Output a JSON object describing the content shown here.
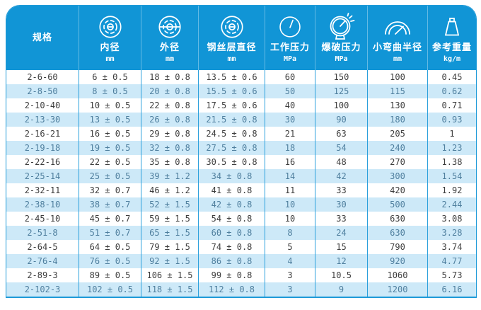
{
  "table": {
    "columns": [
      {
        "id": "spec",
        "label": "规格",
        "unit": "",
        "icon": ""
      },
      {
        "id": "inner-diameter",
        "label": "内径",
        "unit": "mm",
        "icon": "inner-diameter-icon"
      },
      {
        "id": "outer-diameter",
        "label": "外径",
        "unit": "mm",
        "icon": "outer-diameter-icon"
      },
      {
        "id": "wire-layer-diameter",
        "label": "钢丝层直径",
        "unit": "mm",
        "icon": "wire-layer-diameter-icon"
      },
      {
        "id": "working-pressure",
        "label": "工作压力",
        "unit": "MPa",
        "icon": "working-pressure-icon"
      },
      {
        "id": "burst-pressure",
        "label": "爆破压力",
        "unit": "MPa",
        "icon": "burst-pressure-icon"
      },
      {
        "id": "min-bend-radius",
        "label": "小弯曲半径",
        "unit": "mm",
        "icon": "bend-radius-icon"
      },
      {
        "id": "ref-weight",
        "label": "参考重量",
        "unit": "kg/m",
        "icon": "weight-icon"
      }
    ],
    "rows": [
      [
        "2-6-60",
        "6 ± 0.5",
        "18 ± 0.8",
        "13.5 ± 0.6",
        "60",
        "150",
        "100",
        "0.45"
      ],
      [
        "2-8-50",
        "8 ± 0.5",
        "20 ± 0.8",
        "15.5 ± 0.6",
        "50",
        "125",
        "115",
        "0.62"
      ],
      [
        "2-10-40",
        "10 ± 0.5",
        "22 ± 0.8",
        "17.5 ± 0.6",
        "40",
        "100",
        "130",
        "0.71"
      ],
      [
        "2-13-30",
        "13 ± 0.5",
        "26 ± 0.8",
        "21.5 ± 0.8",
        "30",
        "90",
        "180",
        "0.93"
      ],
      [
        "2-16-21",
        "16 ± 0.5",
        "29 ± 0.8",
        "24.5 ± 0.8",
        "21",
        "63",
        "205",
        "1"
      ],
      [
        "2-19-18",
        "19 ± 0.5",
        "32 ± 0.8",
        "27.5 ± 0.8",
        "18",
        "54",
        "240",
        "1.23"
      ],
      [
        "2-22-16",
        "22 ± 0.5",
        "35 ± 0.8",
        "30.5 ± 0.8",
        "16",
        "48",
        "270",
        "1.38"
      ],
      [
        "2-25-14",
        "25 ± 0.5",
        "39 ± 1.2",
        "34 ± 0.8",
        "14",
        "42",
        "300",
        "1.54"
      ],
      [
        "2-32-11",
        "32 ± 0.7",
        "46 ± 1.2",
        "41 ± 0.8",
        "11",
        "33",
        "420",
        "1.92"
      ],
      [
        "2-38-10",
        "38 ± 0.7",
        "52 ± 1.5",
        "42 ± 0.8",
        "10",
        "30",
        "500",
        "2.44"
      ],
      [
        "2-45-10",
        "45 ± 0.7",
        "59 ± 1.5",
        "54 ± 0.8",
        "10",
        "33",
        "630",
        "3.08"
      ],
      [
        "2-51-8",
        "51 ± 0.7",
        "65 ± 1.5",
        "60 ± 0.8",
        "8",
        "24",
        "630",
        "3.28"
      ],
      [
        "2-64-5",
        "64 ± 0.5",
        "79 ± 1.5",
        "74 ± 0.8",
        "5",
        "15",
        "790",
        "3.74"
      ],
      [
        "2-76-4",
        "76 ± 0.5",
        "92 ± 1.5",
        "86 ± 0.8",
        "4",
        "12",
        "920",
        "4.77"
      ],
      [
        "2-89-3",
        "89 ± 0.5",
        "106 ± 1.5",
        "99 ± 0.8",
        "3",
        "10.5",
        "1060",
        "5.73"
      ],
      [
        "2-102-3",
        "102 ± 0.5",
        "118 ± 1.5",
        "112 ± 0.8",
        "3",
        "9",
        "1200",
        "6.16"
      ]
    ]
  },
  "colors": {
    "header_bg": "#1195d6",
    "row_alt_bg": "#cde9f8",
    "grid_line": "#2ba0dc",
    "border": "#1e9ad8",
    "text_dark": "#3d3d3d",
    "text_alt": "#4f7f9e",
    "header_text": "#ffffff"
  },
  "chart_data": {
    "type": "table",
    "columns": [
      "规格",
      "内径 mm",
      "外径 mm",
      "钢丝层直径 mm",
      "工作压力 MPa",
      "爆破压力 MPa",
      "小弯曲半径 mm",
      "参考重量 kg/m"
    ],
    "rows": [
      [
        "2-6-60",
        "6 ± 0.5",
        "18 ± 0.8",
        "13.5 ± 0.6",
        "60",
        "150",
        "100",
        "0.45"
      ],
      [
        "2-8-50",
        "8 ± 0.5",
        "20 ± 0.8",
        "15.5 ± 0.6",
        "50",
        "125",
        "115",
        "0.62"
      ],
      [
        "2-10-40",
        "10 ± 0.5",
        "22 ± 0.8",
        "17.5 ± 0.6",
        "40",
        "100",
        "130",
        "0.71"
      ],
      [
        "2-13-30",
        "13 ± 0.5",
        "26 ± 0.8",
        "21.5 ± 0.8",
        "30",
        "90",
        "180",
        "0.93"
      ],
      [
        "2-16-21",
        "16 ± 0.5",
        "29 ± 0.8",
        "24.5 ± 0.8",
        "21",
        "63",
        "205",
        "1"
      ],
      [
        "2-19-18",
        "19 ± 0.5",
        "32 ± 0.8",
        "27.5 ± 0.8",
        "18",
        "54",
        "240",
        "1.23"
      ],
      [
        "2-22-16",
        "22 ± 0.5",
        "35 ± 0.8",
        "30.5 ± 0.8",
        "16",
        "48",
        "270",
        "1.38"
      ],
      [
        "2-25-14",
        "25 ± 0.5",
        "39 ± 1.2",
        "34 ± 0.8",
        "14",
        "42",
        "300",
        "1.54"
      ],
      [
        "2-32-11",
        "32 ± 0.7",
        "46 ± 1.2",
        "41 ± 0.8",
        "11",
        "33",
        "420",
        "1.92"
      ],
      [
        "2-38-10",
        "38 ± 0.7",
        "52 ± 1.5",
        "42 ± 0.8",
        "10",
        "30",
        "500",
        "2.44"
      ],
      [
        "2-45-10",
        "45 ± 0.7",
        "59 ± 1.5",
        "54 ± 0.8",
        "10",
        "33",
        "630",
        "3.08"
      ],
      [
        "2-51-8",
        "51 ± 0.7",
        "65 ± 1.5",
        "60 ± 0.8",
        "8",
        "24",
        "630",
        "3.28"
      ],
      [
        "2-64-5",
        "64 ± 0.5",
        "79 ± 1.5",
        "74 ± 0.8",
        "5",
        "15",
        "790",
        "3.74"
      ],
      [
        "2-76-4",
        "76 ± 0.5",
        "92 ± 1.5",
        "86 ± 0.8",
        "4",
        "12",
        "920",
        "4.77"
      ],
      [
        "2-89-3",
        "89 ± 0.5",
        "106 ± 1.5",
        "99 ± 0.8",
        "3",
        "10.5",
        "1060",
        "5.73"
      ],
      [
        "2-102-3",
        "102 ± 0.5",
        "118 ± 1.5",
        "112 ± 0.8",
        "3",
        "9",
        "1200",
        "6.16"
      ]
    ]
  }
}
